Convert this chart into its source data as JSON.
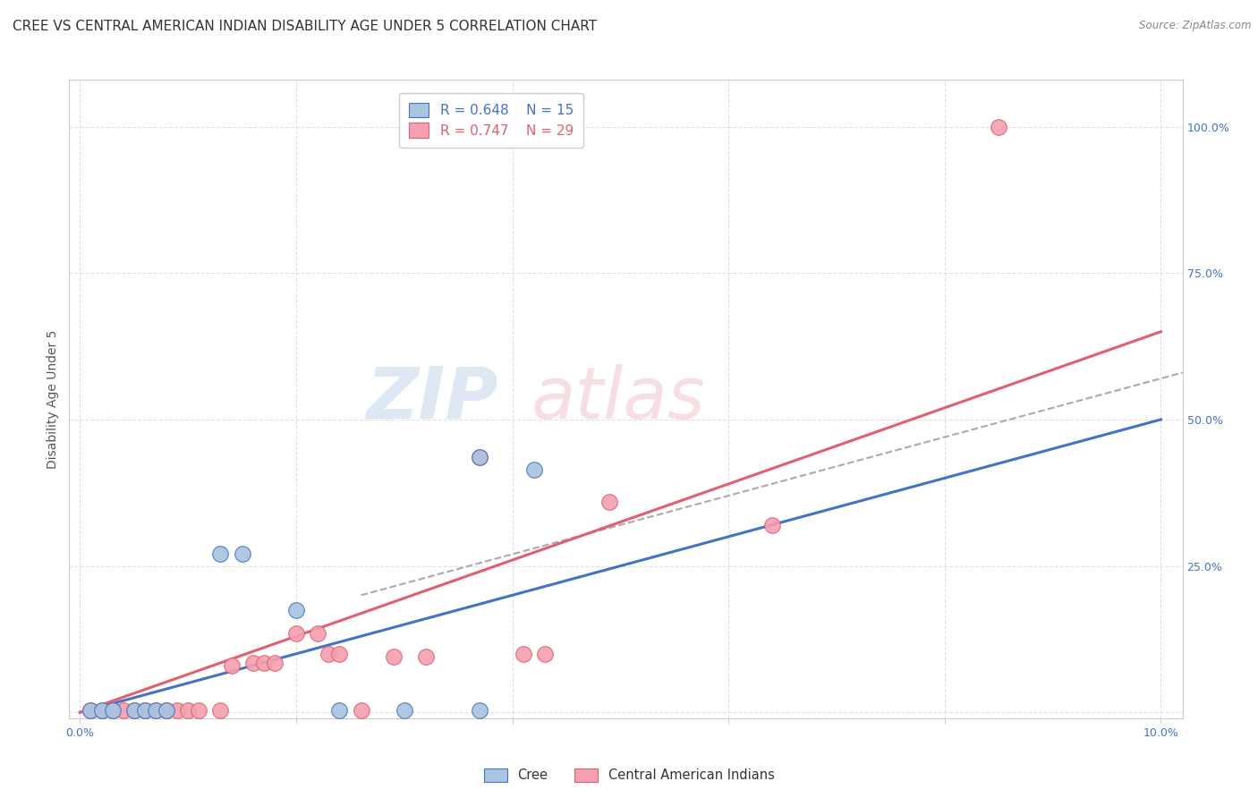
{
  "title": "CREE VS CENTRAL AMERICAN INDIAN DISABILITY AGE UNDER 5 CORRELATION CHART",
  "source": "Source: ZipAtlas.com",
  "ylabel": "Disability Age Under 5",
  "watermark_zip": "ZIP",
  "watermark_atlas": "atlas",
  "x_ticks": [
    0.0,
    0.02,
    0.04,
    0.06,
    0.08,
    0.1
  ],
  "x_tick_labels": [
    "0.0%",
    "",
    "",
    "",
    "",
    "10.0%"
  ],
  "y_ticks_right": [
    0.0,
    0.25,
    0.5,
    0.75,
    1.0
  ],
  "y_tick_labels_right": [
    "",
    "25.0%",
    "50.0%",
    "75.0%",
    "100.0%"
  ],
  "xlim": [
    -0.001,
    0.102
  ],
  "ylim": [
    -0.01,
    1.08
  ],
  "cree_color": "#a8c4e0",
  "cai_color": "#f4a0b0",
  "cree_line_color": "#4472c4",
  "cai_line_color": "#e06070",
  "ref_line_color": "#aaaaaa",
  "legend_R_cree": "R = 0.648",
  "legend_N_cree": "N = 15",
  "legend_R_cai": "R = 0.747",
  "legend_N_cai": "N = 29",
  "cree_points": [
    [
      0.001,
      0.003
    ],
    [
      0.002,
      0.003
    ],
    [
      0.003,
      0.003
    ],
    [
      0.005,
      0.003
    ],
    [
      0.006,
      0.003
    ],
    [
      0.007,
      0.003
    ],
    [
      0.008,
      0.003
    ],
    [
      0.013,
      0.27
    ],
    [
      0.015,
      0.27
    ],
    [
      0.02,
      0.175
    ],
    [
      0.024,
      0.003
    ],
    [
      0.03,
      0.003
    ],
    [
      0.037,
      0.435
    ],
    [
      0.042,
      0.415
    ],
    [
      0.037,
      0.003
    ]
  ],
  "cai_points": [
    [
      0.001,
      0.003
    ],
    [
      0.002,
      0.003
    ],
    [
      0.003,
      0.003
    ],
    [
      0.004,
      0.003
    ],
    [
      0.005,
      0.003
    ],
    [
      0.006,
      0.003
    ],
    [
      0.007,
      0.003
    ],
    [
      0.008,
      0.003
    ],
    [
      0.009,
      0.003
    ],
    [
      0.01,
      0.003
    ],
    [
      0.011,
      0.003
    ],
    [
      0.013,
      0.003
    ],
    [
      0.014,
      0.08
    ],
    [
      0.016,
      0.085
    ],
    [
      0.017,
      0.085
    ],
    [
      0.018,
      0.085
    ],
    [
      0.02,
      0.135
    ],
    [
      0.022,
      0.135
    ],
    [
      0.023,
      0.1
    ],
    [
      0.024,
      0.1
    ],
    [
      0.026,
      0.003
    ],
    [
      0.029,
      0.095
    ],
    [
      0.032,
      0.095
    ],
    [
      0.037,
      0.435
    ],
    [
      0.041,
      0.1
    ],
    [
      0.043,
      0.1
    ],
    [
      0.049,
      0.36
    ],
    [
      0.064,
      0.32
    ],
    [
      0.085,
      1.0
    ]
  ],
  "cree_trend_x": [
    0.0,
    0.1
  ],
  "cree_trend_y": [
    0.0,
    0.5
  ],
  "cai_trend_x": [
    0.0,
    0.1
  ],
  "cai_trend_y": [
    0.0,
    0.65
  ],
  "ref_trend_x": [
    0.026,
    0.102
  ],
  "ref_trend_y": [
    0.2,
    0.58
  ],
  "grid_color": "#e0e0e0",
  "background_color": "#ffffff",
  "title_fontsize": 11,
  "axis_label_fontsize": 10,
  "tick_fontsize": 9,
  "legend_fontsize": 11
}
